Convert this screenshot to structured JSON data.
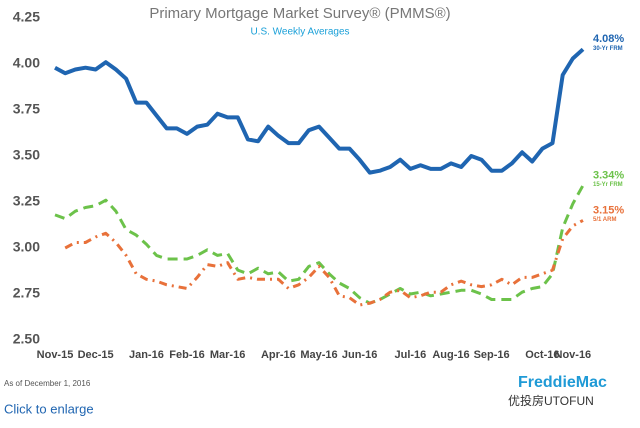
{
  "chart_data": {
    "type": "line",
    "title": "Primary Mortgage Market Survey® (PMMS®)",
    "subtitle": "U.S. Weekly Averages",
    "categories": [
      "Nov-15",
      null,
      null,
      null,
      "Dec-15",
      null,
      null,
      null,
      null,
      "Jan-16",
      null,
      null,
      null,
      "Feb-16",
      null,
      null,
      null,
      "Mar-16",
      null,
      null,
      null,
      null,
      "Apr-16",
      null,
      null,
      null,
      "May-16",
      null,
      null,
      null,
      "Jun-16",
      null,
      null,
      null,
      null,
      "Jul-16",
      null,
      null,
      null,
      "Aug-16",
      null,
      null,
      null,
      "Sep-16",
      null,
      null,
      null,
      null,
      "Oct-16",
      null,
      null,
      "Nov-16",
      null
    ],
    "series": [
      {
        "name": "30-Yr FRM",
        "color": "#1f65b1",
        "end_label": "4.08%",
        "values": [
          3.98,
          3.95,
          3.97,
          3.98,
          3.97,
          4.01,
          3.97,
          3.92,
          3.79,
          3.79,
          3.72,
          3.65,
          3.65,
          3.62,
          3.66,
          3.67,
          3.73,
          3.71,
          3.71,
          3.59,
          3.58,
          3.66,
          3.61,
          3.57,
          3.57,
          3.64,
          3.66,
          3.6,
          3.54,
          3.54,
          3.48,
          3.41,
          3.42,
          3.44,
          3.48,
          3.43,
          3.45,
          3.43,
          3.43,
          3.46,
          3.44,
          3.5,
          3.48,
          3.42,
          3.42,
          3.46,
          3.52,
          3.47,
          3.54,
          3.57,
          3.94,
          4.03,
          4.08
        ]
      },
      {
        "name": "15-Yr FRM",
        "color": "#6cc24a",
        "end_label": "3.34%",
        "values": [
          3.18,
          3.16,
          3.2,
          3.22,
          3.23,
          3.26,
          3.2,
          3.1,
          3.07,
          3.02,
          2.96,
          2.94,
          2.94,
          2.94,
          2.96,
          2.99,
          2.96,
          2.97,
          2.88,
          2.86,
          2.89,
          2.86,
          2.87,
          2.82,
          2.83,
          2.9,
          2.92,
          2.86,
          2.81,
          2.78,
          2.73,
          2.7,
          2.72,
          2.75,
          2.78,
          2.75,
          2.76,
          2.74,
          2.75,
          2.76,
          2.77,
          2.77,
          2.75,
          2.72,
          2.72,
          2.72,
          2.76,
          2.78,
          2.79,
          2.86,
          3.11,
          3.24,
          3.34
        ]
      },
      {
        "name": "5/1 ARM",
        "color": "#e8713a",
        "end_label": "3.15%",
        "values": [
          null,
          3.0,
          3.03,
          3.03,
          3.06,
          3.08,
          3.03,
          2.96,
          2.86,
          2.83,
          2.82,
          2.8,
          2.79,
          2.78,
          2.84,
          2.91,
          2.9,
          2.92,
          2.83,
          2.84,
          2.83,
          2.83,
          2.83,
          2.78,
          2.8,
          2.84,
          2.9,
          2.84,
          2.74,
          2.73,
          2.69,
          2.7,
          2.72,
          2.76,
          2.77,
          2.73,
          2.74,
          2.76,
          2.76,
          2.8,
          2.82,
          2.8,
          2.79,
          2.8,
          2.83,
          2.8,
          2.84,
          2.84,
          2.86,
          2.88,
          3.05,
          3.12,
          3.15
        ]
      }
    ],
    "ylim": [
      2.5,
      4.25
    ],
    "yticks": [
      {
        "value": 2.5,
        "label": "2.50"
      },
      {
        "value": 2.75,
        "label": "2.75"
      },
      {
        "value": 3,
        "label": "3.00"
      },
      {
        "value": 3.25,
        "label": "3.25"
      },
      {
        "value": 3.5,
        "label": "3.50"
      },
      {
        "value": 3.75,
        "label": "3.75"
      },
      {
        "value": 4,
        "label": "4.00"
      },
      {
        "value": 4.25,
        "label": "4.25"
      }
    ],
    "grid": false,
    "note": "As of December 1, 2016"
  },
  "footer": {
    "link": "Click to enlarge",
    "logo": "FreddieMac",
    "watermark": "优投房UTOFUN"
  }
}
